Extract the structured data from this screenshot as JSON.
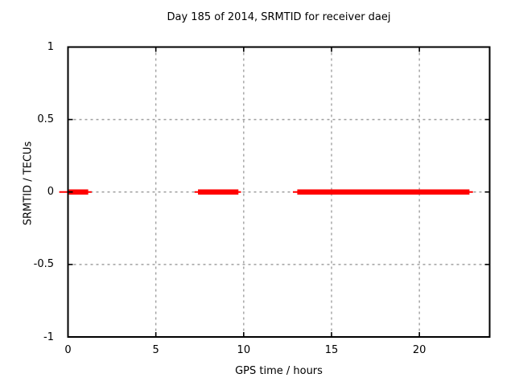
{
  "chart_data": {
    "type": "line",
    "title": "Day 185 of 2014, SRMTID for receiver daej",
    "xlabel": "GPS time / hours",
    "ylabel": "SRMTID / TECUs",
    "xlim": [
      0,
      24
    ],
    "ylim": [
      -1,
      1
    ],
    "xticks": [
      0,
      5,
      10,
      15,
      20
    ],
    "yticks": [
      1,
      0.5,
      0,
      -0.5,
      -1
    ],
    "grid": true,
    "legend": "none",
    "series": [
      {
        "name": "SRMTID",
        "color": "#ff0000",
        "y": 0,
        "segments_hours": [
          {
            "thin": [
              -0.5,
              1.35
            ],
            "thick": [
              0.05,
              1.15
            ]
          },
          {
            "thin": [
              7.2,
              9.85
            ],
            "thick": [
              7.4,
              9.7
            ]
          },
          {
            "thin": [
              12.8,
              23.05
            ],
            "thick": [
              13.05,
              22.85
            ]
          }
        ]
      }
    ],
    "colors": {
      "background": "#ffffff",
      "axis": "#000000",
      "text": "#000000",
      "grid": "#a0a0a0"
    }
  }
}
